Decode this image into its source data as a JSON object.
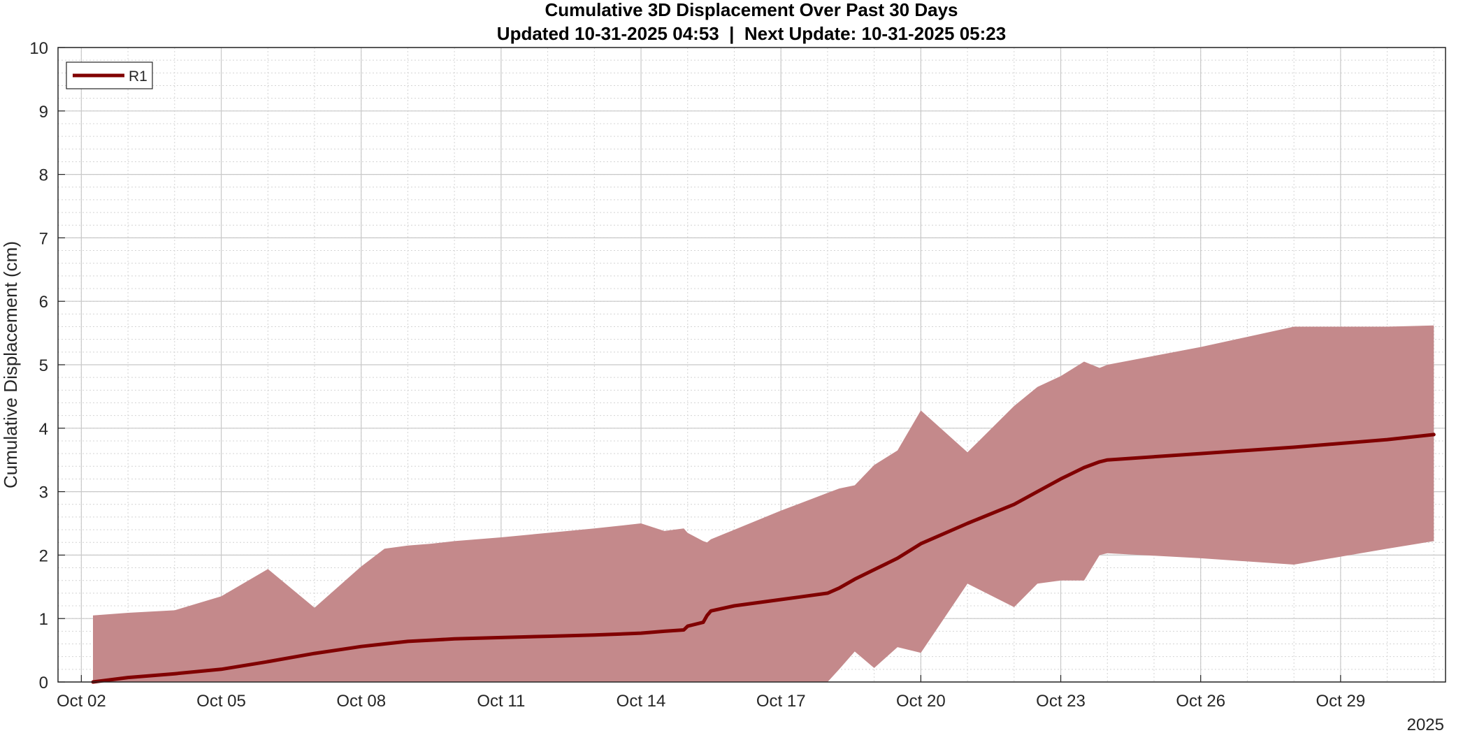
{
  "chart_data": {
    "type": "area",
    "title": "Cumulative 3D Displacement Over Past 30 Days",
    "subtitle": "Updated 10-31-2025 04:53  |  Next Update: 10-31-2025 05:23",
    "xlabel": "",
    "ylabel": "Cumulative Displacement (cm)",
    "x_year_label": "2025",
    "xlim": [
      "2025-10-01T12:00",
      "2025-10-31T06:00"
    ],
    "ylim": [
      0,
      10
    ],
    "x_ticks": [
      {
        "date": "2025-10-02",
        "label": "Oct 02"
      },
      {
        "date": "2025-10-05",
        "label": "Oct 05"
      },
      {
        "date": "2025-10-08",
        "label": "Oct 08"
      },
      {
        "date": "2025-10-11",
        "label": "Oct 11"
      },
      {
        "date": "2025-10-14",
        "label": "Oct 14"
      },
      {
        "date": "2025-10-17",
        "label": "Oct 17"
      },
      {
        "date": "2025-10-20",
        "label": "Oct 20"
      },
      {
        "date": "2025-10-23",
        "label": "Oct 23"
      },
      {
        "date": "2025-10-26",
        "label": "Oct 26"
      },
      {
        "date": "2025-10-29",
        "label": "Oct 29"
      }
    ],
    "y_ticks": [
      0,
      1,
      2,
      3,
      4,
      5,
      6,
      7,
      8,
      9,
      10
    ],
    "grid": true,
    "minor_grid": true,
    "legend_position": "top-left",
    "series": [
      {
        "name": "R1",
        "color": "#800000",
        "band_color": "#c4898b",
        "x": [
          "2025-10-02T06:00",
          "2025-10-03T00:00",
          "2025-10-04T00:00",
          "2025-10-05T00:00",
          "2025-10-06T00:00",
          "2025-10-07T00:00",
          "2025-10-08T00:00",
          "2025-10-08T12:00",
          "2025-10-09T00:00",
          "2025-10-09T12:00",
          "2025-10-10T00:00",
          "2025-10-11T00:00",
          "2025-10-12T00:00",
          "2025-10-13T00:00",
          "2025-10-14T00:00",
          "2025-10-14T12:00",
          "2025-10-14T22:00",
          "2025-10-15T00:00",
          "2025-10-15T08:00",
          "2025-10-15T10:00",
          "2025-10-15T12:00",
          "2025-10-16T00:00",
          "2025-10-17T00:00",
          "2025-10-18T00:00",
          "2025-10-18T06:00",
          "2025-10-18T14:00",
          "2025-10-19T00:00",
          "2025-10-19T12:00",
          "2025-10-20T00:00",
          "2025-10-21T00:00",
          "2025-10-22T00:00",
          "2025-10-22T12:00",
          "2025-10-23T00:00",
          "2025-10-23T12:00",
          "2025-10-23T20:00",
          "2025-10-24T00:00",
          "2025-10-26T00:00",
          "2025-10-28T00:00",
          "2025-10-30T00:00",
          "2025-10-31T00:00"
        ],
        "values": [
          0.0,
          0.07,
          0.13,
          0.2,
          0.32,
          0.45,
          0.56,
          0.6,
          0.64,
          0.66,
          0.68,
          0.7,
          0.72,
          0.74,
          0.77,
          0.8,
          0.82,
          0.88,
          0.94,
          1.05,
          1.12,
          1.2,
          1.3,
          1.4,
          1.48,
          1.62,
          1.77,
          1.95,
          2.18,
          2.5,
          2.8,
          3.0,
          3.2,
          3.38,
          3.47,
          3.5,
          3.6,
          3.7,
          3.82,
          3.9
        ],
        "band_upper": [
          1.05,
          1.09,
          1.13,
          1.35,
          1.78,
          1.17,
          1.82,
          2.1,
          2.15,
          2.18,
          2.22,
          2.28,
          2.35,
          2.42,
          2.5,
          2.38,
          2.42,
          2.35,
          2.22,
          2.2,
          2.25,
          2.4,
          2.7,
          2.98,
          3.05,
          3.1,
          3.42,
          3.65,
          4.28,
          3.62,
          4.35,
          4.65,
          4.82,
          5.05,
          4.95,
          5.0,
          5.28,
          5.6,
          5.6,
          5.62
        ],
        "band_lower": [
          0.0,
          0.0,
          0.0,
          0.0,
          0.0,
          0.0,
          0.0,
          0.0,
          0.0,
          0.0,
          0.0,
          0.0,
          0.0,
          0.0,
          0.0,
          0.0,
          0.0,
          0.0,
          0.0,
          0.0,
          0.0,
          0.0,
          0.0,
          0.0,
          0.2,
          0.48,
          0.22,
          0.55,
          0.46,
          1.55,
          1.18,
          1.55,
          1.6,
          1.6,
          2.0,
          2.03,
          1.95,
          1.85,
          2.1,
          2.22
        ]
      }
    ]
  }
}
